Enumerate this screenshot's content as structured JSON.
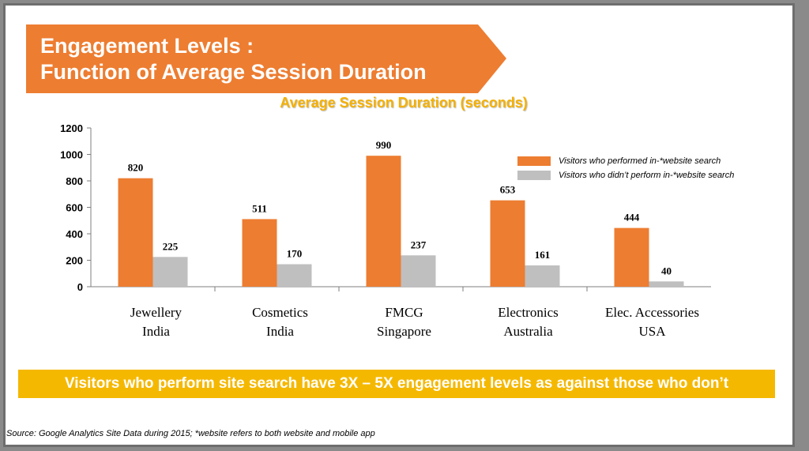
{
  "banner": {
    "line1": "Engagement Levels :",
    "line2": "Function of Average Session Duration"
  },
  "takeaway": "Visitors who perform site search have 3X – 5X engagement levels as against those who don’t",
  "source": "Source: Google Analytics Site Data during 2015; *website refers to both website and mobile app",
  "colors": {
    "search": "#ed7d31",
    "no_search": "#bfbfbf",
    "banner": "#ed7d31",
    "takeaway": "#f5b800",
    "title": "#f5b000"
  },
  "chart_data": {
    "type": "bar",
    "title": "Average Session Duration (seconds)",
    "xlabel": "",
    "ylabel": "",
    "categories": [
      [
        "Jewellery",
        "India"
      ],
      [
        "Cosmetics",
        "India"
      ],
      [
        "FMCG",
        "Singapore"
      ],
      [
        "Electronics",
        "Australia"
      ],
      [
        "Elec. Accessories",
        "USA"
      ]
    ],
    "series": [
      {
        "name": "Visitors who performed in-*website search",
        "values": [
          820,
          511,
          990,
          653,
          444
        ]
      },
      {
        "name": "Visitors who didn’t perform in-*website search",
        "values": [
          225,
          170,
          237,
          161,
          40
        ]
      }
    ],
    "ylim": [
      0,
      1200
    ],
    "yticks": [
      0,
      200,
      400,
      600,
      800,
      1000,
      1200
    ],
    "grid": false,
    "legend": "top-right",
    "data_labels": true
  }
}
